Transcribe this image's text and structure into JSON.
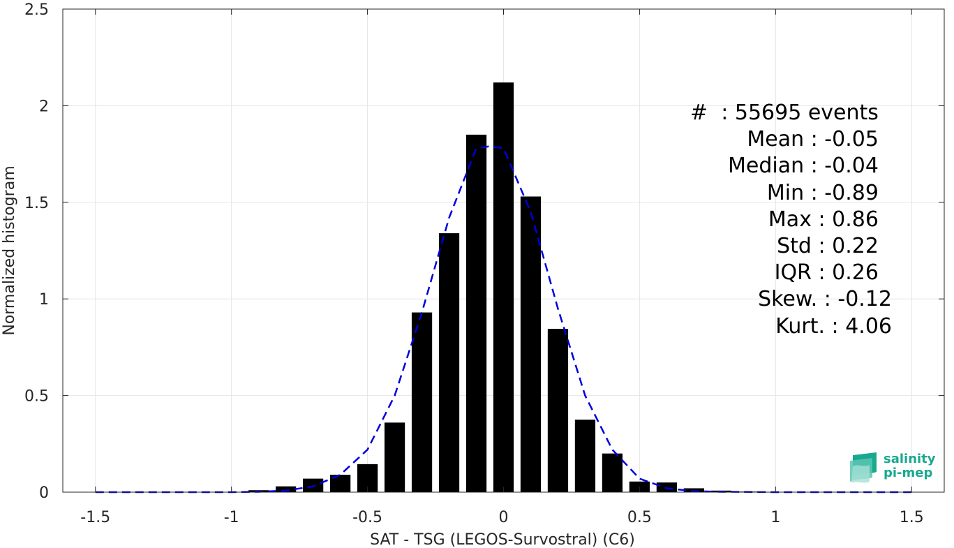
{
  "chart_data": {
    "type": "bar",
    "xlabel": "SAT - TSG (LEGOS-Survostral) (C6)",
    "ylabel": "Normalized histogram",
    "xlim": [
      -1.62,
      1.62
    ],
    "ylim": [
      0,
      2.5
    ],
    "xticks": [
      -1.5,
      -1,
      -0.5,
      0,
      0.5,
      1,
      1.5
    ],
    "xtick_labels": [
      "-1.5",
      "-1",
      "-0.5",
      "0",
      "0.5",
      "1",
      "1.5"
    ],
    "yticks": [
      0,
      0.5,
      1,
      1.5,
      2,
      2.5
    ],
    "ytick_labels": [
      "0",
      "0.5",
      "1",
      "1.5",
      "2",
      "2.5"
    ],
    "grid": true,
    "bar_width": 0.075,
    "bars": [
      {
        "x": -0.9,
        "value": 0.01
      },
      {
        "x": -0.8,
        "value": 0.03
      },
      {
        "x": -0.7,
        "value": 0.07
      },
      {
        "x": -0.6,
        "value": 0.09
      },
      {
        "x": -0.5,
        "value": 0.145
      },
      {
        "x": -0.4,
        "value": 0.36
      },
      {
        "x": -0.3,
        "value": 0.93
      },
      {
        "x": -0.2,
        "value": 1.34
      },
      {
        "x": -0.1,
        "value": 1.85
      },
      {
        "x": 0.0,
        "value": 2.12
      },
      {
        "x": 0.1,
        "value": 1.53
      },
      {
        "x": 0.2,
        "value": 0.845
      },
      {
        "x": 0.3,
        "value": 0.375
      },
      {
        "x": 0.4,
        "value": 0.2
      },
      {
        "x": 0.5,
        "value": 0.055
      },
      {
        "x": 0.6,
        "value": 0.05
      },
      {
        "x": 0.7,
        "value": 0.02
      },
      {
        "x": 0.8,
        "value": 0.008
      },
      {
        "x": 0.9,
        "value": 0.003
      }
    ],
    "fit_curve": {
      "style": "dashed",
      "color": "#0000dd",
      "x": [
        -1.5,
        -1.0,
        -0.9,
        -0.8,
        -0.7,
        -0.6,
        -0.5,
        -0.4,
        -0.3,
        -0.2,
        -0.1,
        -0.05,
        0.0,
        0.1,
        0.2,
        0.3,
        0.4,
        0.5,
        0.6,
        0.7,
        0.8,
        1.0,
        1.5
      ],
      "y": [
        0.0,
        0.0,
        0.002,
        0.008,
        0.03,
        0.09,
        0.22,
        0.5,
        0.93,
        1.42,
        1.78,
        1.79,
        1.78,
        1.45,
        0.95,
        0.5,
        0.22,
        0.07,
        0.02,
        0.005,
        0.002,
        0.0,
        0.0
      ]
    },
    "annotation_lines": [
      "#  : 55695 events  ",
      "Mean : -0.05  ",
      "Median : -0.04  ",
      "Min : -0.89  ",
      "Max : 0.86  ",
      "Std : 0.22  ",
      "IQR : 0.26  ",
      "Skew. : -0.12",
      "Kurt. : 4.06"
    ]
  },
  "logo": {
    "line1": "salinity",
    "line2": "pi-mep"
  },
  "colors": {
    "bar": "#000000",
    "fit": "#0000dd",
    "grid": "#e6e6e6",
    "axis": "#262626",
    "logo": "#1aa88f"
  }
}
